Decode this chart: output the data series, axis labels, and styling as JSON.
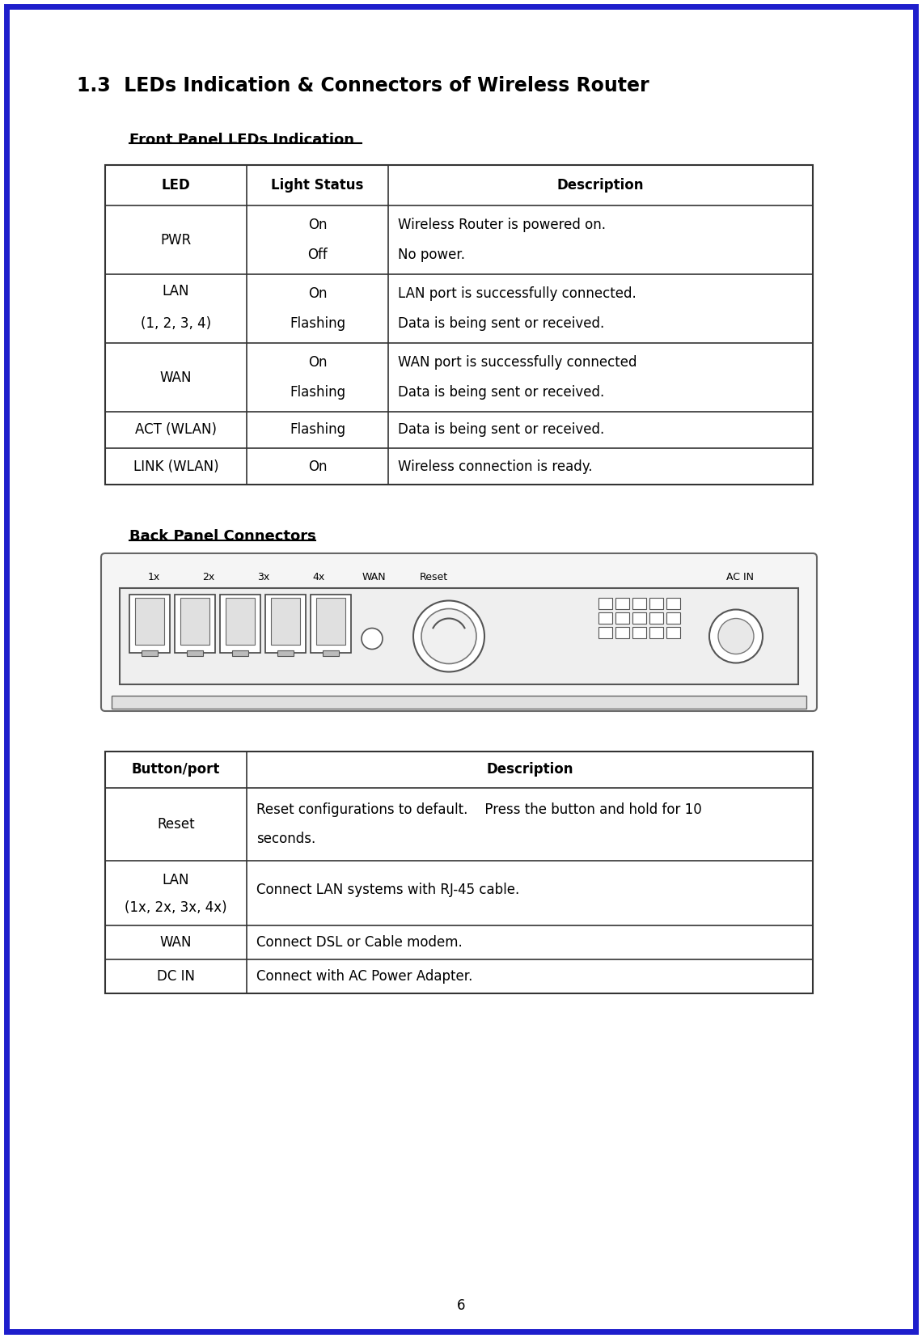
{
  "page_title": "1.3  LEDs Indication & Connectors of Wireless Router",
  "section1_title": "Front Panel LEDs Indication",
  "section2_title": "Back Panel Connectors",
  "border_color": "#1E1ECC",
  "table1_headers": [
    "LED",
    "Light Status",
    "Description"
  ],
  "table2_headers": [
    "Button/port",
    "Description"
  ],
  "page_number": "6",
  "bg_color": "#FFFFFF",
  "text_color": "#000000",
  "table_border_color": "#333333"
}
